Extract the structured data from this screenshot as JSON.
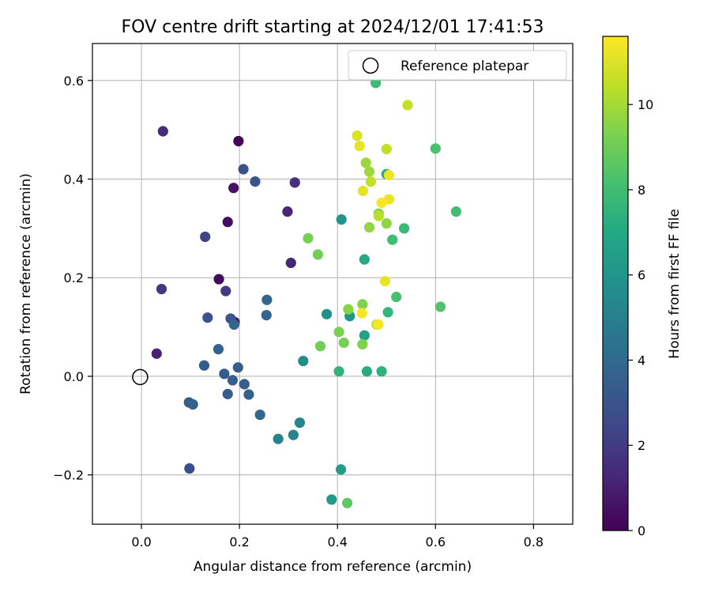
{
  "chart_data": {
    "type": "scatter",
    "title": "FOV centre drift starting at 2024/12/01 17:41:53",
    "xlabel": "Angular distance from reference (arcmin)",
    "ylabel": "Rotation from reference (arcmin)",
    "xlim": [
      -0.1,
      0.88
    ],
    "ylim": [
      -0.3,
      0.675
    ],
    "xticks": [
      0.0,
      0.2,
      0.4,
      0.6,
      0.8
    ],
    "xtick_labels": [
      "0.0",
      "0.2",
      "0.4",
      "0.6",
      "0.8"
    ],
    "yticks": [
      -0.2,
      0.0,
      0.2,
      0.4,
      0.6
    ],
    "ytick_labels": [
      "−0.2",
      "0.0",
      "0.2",
      "0.4",
      "0.6"
    ],
    "grid": true,
    "legend": {
      "placement": "top-right",
      "entries": [
        "Reference platepar"
      ]
    },
    "reference_point": {
      "label": "Reference platepar",
      "x": 0.0,
      "y": 0.0
    },
    "colorbar": {
      "label": "Hours from first FF file",
      "colormap": "viridis",
      "range": [
        0,
        11.6
      ],
      "ticks": [
        0,
        2,
        4,
        6,
        8,
        10
      ],
      "tick_labels": [
        "0",
        "2",
        "4",
        "6",
        "8",
        "10"
      ]
    },
    "points": [
      {
        "x": 0.198,
        "y": 0.477,
        "hours": 0.1
      },
      {
        "x": 0.158,
        "y": 0.197,
        "hours": 0.3
      },
      {
        "x": 0.176,
        "y": 0.313,
        "hours": 0.4
      },
      {
        "x": 0.188,
        "y": 0.382,
        "hours": 0.6
      },
      {
        "x": 0.19,
        "y": 0.11,
        "hours": 0.6
      },
      {
        "x": 0.031,
        "y": 0.046,
        "hours": 1.1
      },
      {
        "x": 0.298,
        "y": 0.334,
        "hours": 1.2
      },
      {
        "x": 0.305,
        "y": 0.23,
        "hours": 1.3
      },
      {
        "x": 0.044,
        "y": 0.497,
        "hours": 1.5
      },
      {
        "x": 0.313,
        "y": 0.393,
        "hours": 1.6
      },
      {
        "x": 0.041,
        "y": 0.177,
        "hours": 1.8
      },
      {
        "x": 0.172,
        "y": 0.173,
        "hours": 2.0
      },
      {
        "x": 0.13,
        "y": 0.283,
        "hours": 2.3
      },
      {
        "x": 0.098,
        "y": -0.187,
        "hours": 2.7
      },
      {
        "x": 0.135,
        "y": 0.119,
        "hours": 2.9
      },
      {
        "x": 0.208,
        "y": 0.42,
        "hours": 3.0
      },
      {
        "x": 0.232,
        "y": 0.395,
        "hours": 3.1
      },
      {
        "x": 0.182,
        "y": 0.117,
        "hours": 3.2
      },
      {
        "x": 0.128,
        "y": 0.022,
        "hours": 3.3
      },
      {
        "x": 0.197,
        "y": 0.018,
        "hours": 3.4
      },
      {
        "x": 0.169,
        "y": 0.005,
        "hours": 3.3
      },
      {
        "x": 0.186,
        "y": -0.008,
        "hours": 3.5
      },
      {
        "x": 0.21,
        "y": -0.016,
        "hours": 3.4
      },
      {
        "x": 0.176,
        "y": -0.036,
        "hours": 3.4
      },
      {
        "x": 0.219,
        "y": -0.037,
        "hours": 3.5
      },
      {
        "x": 0.097,
        "y": -0.053,
        "hours": 3.5
      },
      {
        "x": 0.105,
        "y": -0.057,
        "hours": 3.6
      },
      {
        "x": 0.157,
        "y": 0.055,
        "hours": 3.7
      },
      {
        "x": 0.189,
        "y": 0.105,
        "hours": 3.7
      },
      {
        "x": 0.256,
        "y": 0.155,
        "hours": 3.8
      },
      {
        "x": 0.255,
        "y": 0.124,
        "hours": 3.8
      },
      {
        "x": 0.242,
        "y": -0.078,
        "hours": 3.9
      },
      {
        "x": 0.279,
        "y": -0.127,
        "hours": 5.2
      },
      {
        "x": 0.31,
        "y": -0.119,
        "hours": 5.2
      },
      {
        "x": 0.323,
        "y": -0.094,
        "hours": 5.3
      },
      {
        "x": 0.33,
        "y": 0.031,
        "hours": 5.6
      },
      {
        "x": 0.378,
        "y": 0.126,
        "hours": 5.8
      },
      {
        "x": 0.408,
        "y": 0.318,
        "hours": 6.0
      },
      {
        "x": 0.425,
        "y": 0.122,
        "hours": 6.1
      },
      {
        "x": 0.388,
        "y": -0.25,
        "hours": 6.3
      },
      {
        "x": 0.407,
        "y": -0.189,
        "hours": 6.4
      },
      {
        "x": 0.455,
        "y": 0.083,
        "hours": 6.6
      },
      {
        "x": 0.455,
        "y": 0.237,
        "hours": 7.0
      },
      {
        "x": 0.5,
        "y": 0.41,
        "hours": 7.1
      },
      {
        "x": 0.46,
        "y": 0.01,
        "hours": 7.2
      },
      {
        "x": 0.49,
        "y": 0.01,
        "hours": 7.4
      },
      {
        "x": 0.403,
        "y": 0.01,
        "hours": 7.5
      },
      {
        "x": 0.503,
        "y": 0.13,
        "hours": 7.6
      },
      {
        "x": 0.478,
        "y": 0.595,
        "hours": 7.8
      },
      {
        "x": 0.536,
        "y": 0.3,
        "hours": 7.8
      },
      {
        "x": 0.512,
        "y": 0.277,
        "hours": 8.0
      },
      {
        "x": 0.52,
        "y": 0.161,
        "hours": 8.2
      },
      {
        "x": 0.6,
        "y": 0.462,
        "hours": 8.2
      },
      {
        "x": 0.642,
        "y": 0.334,
        "hours": 8.0
      },
      {
        "x": 0.61,
        "y": 0.141,
        "hours": 8.4
      },
      {
        "x": 0.42,
        "y": -0.257,
        "hours": 8.7
      },
      {
        "x": 0.36,
        "y": 0.247,
        "hours": 9.1
      },
      {
        "x": 0.365,
        "y": 0.061,
        "hours": 9.1
      },
      {
        "x": 0.34,
        "y": 0.28,
        "hours": 9.2
      },
      {
        "x": 0.413,
        "y": 0.068,
        "hours": 9.2
      },
      {
        "x": 0.403,
        "y": 0.09,
        "hours": 9.3
      },
      {
        "x": 0.451,
        "y": 0.065,
        "hours": 9.3
      },
      {
        "x": 0.451,
        "y": 0.146,
        "hours": 9.4
      },
      {
        "x": 0.422,
        "y": 0.136,
        "hours": 9.5
      },
      {
        "x": 0.5,
        "y": 0.31,
        "hours": 9.6
      },
      {
        "x": 0.465,
        "y": 0.302,
        "hours": 9.7
      },
      {
        "x": 0.484,
        "y": 0.33,
        "hours": 9.6
      },
      {
        "x": 0.458,
        "y": 0.433,
        "hours": 9.8
      },
      {
        "x": 0.465,
        "y": 0.415,
        "hours": 9.9
      },
      {
        "x": 0.543,
        "y": 0.55,
        "hours": 10.6
      },
      {
        "x": 0.5,
        "y": 0.461,
        "hours": 10.5
      },
      {
        "x": 0.468,
        "y": 0.395,
        "hours": 10.5
      },
      {
        "x": 0.484,
        "y": 0.325,
        "hours": 10.4
      },
      {
        "x": 0.48,
        "y": 0.105,
        "hours": 10.2
      },
      {
        "x": 0.44,
        "y": 0.488,
        "hours": 11.0
      },
      {
        "x": 0.445,
        "y": 0.467,
        "hours": 11.2
      },
      {
        "x": 0.505,
        "y": 0.408,
        "hours": 11.3
      },
      {
        "x": 0.452,
        "y": 0.376,
        "hours": 11.2
      },
      {
        "x": 0.505,
        "y": 0.359,
        "hours": 11.3
      },
      {
        "x": 0.49,
        "y": 0.352,
        "hours": 11.5
      },
      {
        "x": 0.497,
        "y": 0.193,
        "hours": 11.2
      },
      {
        "x": 0.45,
        "y": 0.128,
        "hours": 11.5
      },
      {
        "x": 0.483,
        "y": 0.105,
        "hours": 11.4
      }
    ]
  }
}
